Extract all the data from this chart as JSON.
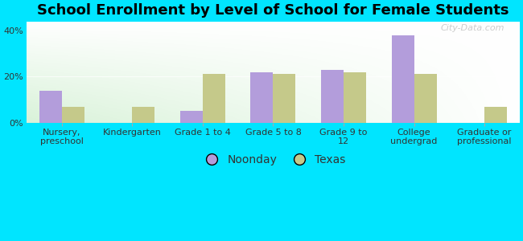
{
  "title": "School Enrollment by Level of School for Female Students",
  "categories": [
    "Nursery,\npreschool",
    "Kindergarten",
    "Grade 1 to 4",
    "Grade 5 to 8",
    "Grade 9 to\n12",
    "College\nundergrad",
    "Graduate or\nprofessional"
  ],
  "noonday": [
    14,
    0,
    5,
    22,
    23,
    38,
    0
  ],
  "texas": [
    7,
    7,
    21,
    21,
    22,
    21,
    7
  ],
  "noonday_color": "#b39ddb",
  "texas_color": "#c5c98a",
  "background_color": "#00e5ff",
  "ylabel_ticks": [
    "0%",
    "20%",
    "40%"
  ],
  "yticks": [
    0,
    20,
    40
  ],
  "ylim": [
    0,
    44
  ],
  "legend_noonday": "Noonday",
  "legend_texas": "Texas",
  "bar_width": 0.32,
  "title_fontsize": 13,
  "tick_fontsize": 8,
  "legend_fontsize": 10,
  "watermark": "City-Data.com"
}
